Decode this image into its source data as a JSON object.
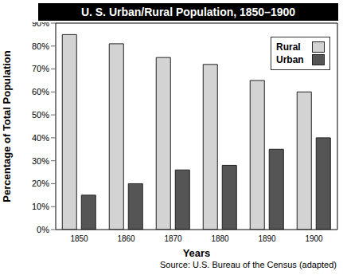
{
  "chart_data": {
    "type": "bar",
    "title": "U. S. Urban/Rural Population, 1850–1900",
    "x_label": "Years",
    "y_label": "Percentage of Total Population",
    "annotations": [
      "Source: U.S. Bureau of the Census (adapted)"
    ],
    "categories": [
      "1850",
      "1860",
      "1870",
      "1880",
      "1890",
      "1900"
    ],
    "series": [
      {
        "name": "Rural",
        "color": "#d3d3d3",
        "values": [
          85,
          81,
          75,
          72,
          65,
          60
        ]
      },
      {
        "name": "Urban",
        "color": "#555555",
        "values": [
          15,
          20,
          26,
          28,
          35,
          40
        ]
      }
    ],
    "ylim": [
      0,
      90
    ],
    "yticks": [
      {
        "value": 0,
        "label": "0%"
      },
      {
        "value": 10,
        "label": "10%"
      },
      {
        "value": 20,
        "label": "20%"
      },
      {
        "value": 30,
        "label": "30%"
      },
      {
        "value": 40,
        "label": "40%"
      },
      {
        "value": 50,
        "label": "50%"
      },
      {
        "value": 60,
        "label": "60%"
      },
      {
        "value": 70,
        "label": "70%"
      },
      {
        "value": 80,
        "label": "80%"
      },
      {
        "value": 90,
        "label": "90%"
      }
    ],
    "grid": false,
    "legend": "top-right"
  }
}
